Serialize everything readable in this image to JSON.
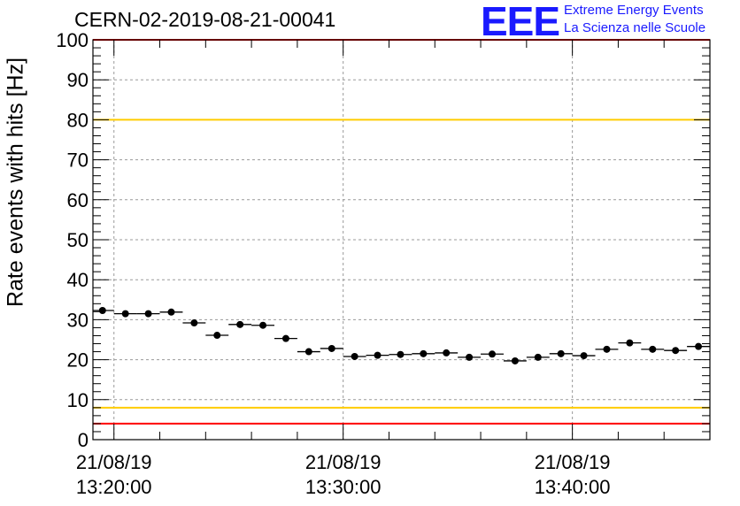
{
  "title": "CERN-02-2019-08-21-00041",
  "logo": {
    "mark": "EEE",
    "line1": "Extreme Energy Events",
    "line2": "La Scienza nelle Scuole",
    "color": "#1a1aff"
  },
  "chart_data": {
    "type": "scatter",
    "title": "CERN-02-2019-08-21-00041",
    "xlabel": "",
    "ylabel": "Rate events with hits [Hz]",
    "xlim": [
      "2019-08-21 13:19:05",
      "2019-08-21 13:46:00"
    ],
    "ylim": [
      0,
      100
    ],
    "grid": true,
    "y_ticks": [
      0,
      10,
      20,
      30,
      40,
      50,
      60,
      70,
      80,
      90,
      100
    ],
    "x_tick_labels": [
      {
        "date": "21/08/19",
        "time": "13:20:00"
      },
      {
        "date": "21/08/19",
        "time": "13:30:00"
      },
      {
        "date": "21/08/19",
        "time": "13:40:00"
      }
    ],
    "x_tick_times": [
      "2019-08-21 13:20:00",
      "2019-08-21 13:30:00",
      "2019-08-21 13:40:00"
    ],
    "bin_width_seconds": 60,
    "x": [
      "13:19:30",
      "13:20:30",
      "13:21:30",
      "13:22:30",
      "13:23:30",
      "13:24:30",
      "13:25:30",
      "13:26:30",
      "13:27:30",
      "13:28:30",
      "13:29:30",
      "13:30:30",
      "13:31:30",
      "13:32:30",
      "13:33:30",
      "13:34:30",
      "13:35:30",
      "13:36:30",
      "13:37:30",
      "13:38:30",
      "13:39:30",
      "13:40:30",
      "13:41:30",
      "13:42:30",
      "13:43:30",
      "13:44:30",
      "13:45:30"
    ],
    "values": [
      32.3,
      31.5,
      31.5,
      31.9,
      29.2,
      26.1,
      28.8,
      28.6,
      25.3,
      22.0,
      22.8,
      20.8,
      21.1,
      21.3,
      21.5,
      21.7,
      20.6,
      21.4,
      19.7,
      20.6,
      21.5,
      21.0,
      22.6,
      24.2,
      22.6,
      22.3,
      23.3
    ],
    "reference_lines": [
      {
        "y": 80,
        "color": "#ffcc00"
      },
      {
        "y": 8,
        "color": "#ffcc00"
      },
      {
        "y": 4,
        "color": "#ff0000"
      },
      {
        "y": 100,
        "color": "#ff0000"
      }
    ],
    "marker_color": "#000000"
  }
}
